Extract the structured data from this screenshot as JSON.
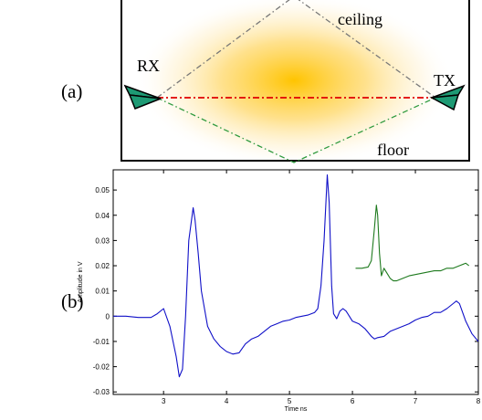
{
  "panels": {
    "a_label": "(a)",
    "b_label": "(b)"
  },
  "diagram": {
    "rx_label": "RX",
    "tx_label": "TX",
    "ceiling_label": "ceiling",
    "floor_label": "floor",
    "colors": {
      "direct_path": "#e00000",
      "ceiling_path": "#777777",
      "floor_path": "#2e9a3e",
      "antenna": "#1e9a74",
      "glow": "#ffcc00"
    }
  },
  "chart_data": {
    "type": "line",
    "title": "",
    "xlabel": "Time ns",
    "ylabel": "Amplitude in V",
    "xlim": [
      2.2,
      8.0
    ],
    "ylim": [
      -0.031,
      0.058
    ],
    "x_ticks": [
      3,
      4,
      5,
      6,
      7,
      8
    ],
    "y_ticks": [
      -0.03,
      -0.02,
      -0.01,
      0,
      0.01,
      0.02,
      0.03,
      0.04,
      0.05
    ],
    "x_tick_labels": [
      "3",
      "4",
      "5",
      "6",
      "7",
      "8"
    ],
    "y_tick_labels": [
      "-0.03",
      "-0.02",
      "-0.01",
      "0",
      "0.01",
      "0.02",
      "0.03",
      "0.04",
      "0.05"
    ],
    "grid": false,
    "series": [
      {
        "color": "#1010c8",
        "x": [
          2.2,
          2.4,
          2.6,
          2.8,
          2.9,
          3.0,
          3.1,
          3.2,
          3.25,
          3.3,
          3.35,
          3.4,
          3.47,
          3.5,
          3.55,
          3.6,
          3.7,
          3.8,
          3.9,
          4.0,
          4.1,
          4.2,
          4.3,
          4.4,
          4.5,
          4.6,
          4.7,
          4.8,
          4.9,
          5.0,
          5.1,
          5.2,
          5.3,
          5.4,
          5.45,
          5.5,
          5.55,
          5.6,
          5.63,
          5.67,
          5.7,
          5.75,
          5.8,
          5.85,
          5.9,
          6.0,
          6.1,
          6.2,
          6.3,
          6.35,
          6.4,
          6.5,
          6.6,
          6.7,
          6.8,
          6.9,
          7.0,
          7.1,
          7.2,
          7.3,
          7.4,
          7.5,
          7.6,
          7.65,
          7.7,
          7.8,
          7.9,
          8.0
        ],
        "y": [
          0.0,
          0.0,
          -0.0005,
          -0.0005,
          0.001,
          0.003,
          -0.004,
          -0.016,
          -0.024,
          -0.021,
          0.0,
          0.03,
          0.043,
          0.038,
          0.025,
          0.01,
          -0.004,
          -0.009,
          -0.012,
          -0.014,
          -0.015,
          -0.0145,
          -0.011,
          -0.009,
          -0.008,
          -0.006,
          -0.004,
          -0.003,
          -0.002,
          -0.0015,
          -0.0005,
          0.0,
          0.0005,
          0.0015,
          0.003,
          0.012,
          0.03,
          0.056,
          0.045,
          0.012,
          0.001,
          -0.001,
          0.002,
          0.003,
          0.002,
          -0.002,
          -0.003,
          -0.005,
          -0.008,
          -0.009,
          -0.0085,
          -0.008,
          -0.006,
          -0.005,
          -0.004,
          -0.003,
          -0.0015,
          -0.0005,
          0.0,
          0.0015,
          0.0015,
          0.003,
          0.005,
          0.006,
          0.005,
          -0.002,
          -0.007,
          -0.01
        ]
      },
      {
        "color": "#1e7a1e",
        "x": [
          6.05,
          6.15,
          6.25,
          6.3,
          6.35,
          6.38,
          6.4,
          6.43,
          6.46,
          6.5,
          6.55,
          6.6,
          6.65,
          6.7,
          6.8,
          6.9,
          7.0,
          7.1,
          7.2,
          7.3,
          7.4,
          7.5,
          7.6,
          7.7,
          7.8,
          7.85
        ],
        "y": [
          0.019,
          0.019,
          0.0195,
          0.022,
          0.035,
          0.044,
          0.04,
          0.025,
          0.016,
          0.019,
          0.017,
          0.015,
          0.014,
          0.014,
          0.015,
          0.016,
          0.0165,
          0.017,
          0.0175,
          0.018,
          0.018,
          0.019,
          0.019,
          0.02,
          0.021,
          0.02
        ]
      }
    ]
  }
}
